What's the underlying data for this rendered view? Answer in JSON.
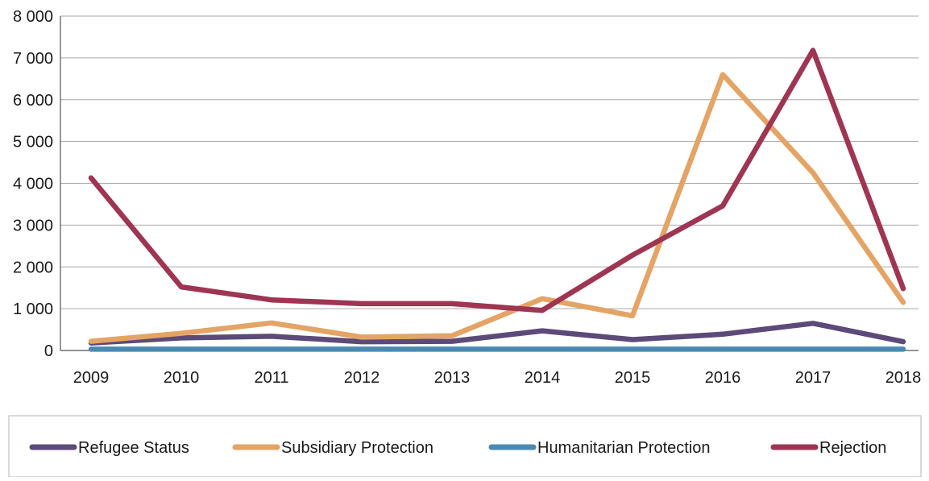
{
  "chart_data": {
    "type": "line",
    "title": "",
    "xlabel": "",
    "ylabel": "",
    "categories": [
      "2009",
      "2010",
      "2011",
      "2012",
      "2013",
      "2014",
      "2015",
      "2016",
      "2017",
      "2018"
    ],
    "ylim": [
      0,
      8000
    ],
    "yticks": [
      0,
      1000,
      2000,
      3000,
      4000,
      5000,
      6000,
      7000,
      8000
    ],
    "ytick_labels": [
      "0",
      "1 000",
      "2 000",
      "3 000",
      "4 000",
      "5 000",
      "6 000",
      "7 000",
      "8 000"
    ],
    "grid": "horizontal",
    "legend_position": "bottom",
    "series": [
      {
        "name": "Refugee Status",
        "color": "#5c4a79",
        "values": [
          180,
          300,
          340,
          210,
          220,
          470,
          260,
          390,
          650,
          210
        ]
      },
      {
        "name": "Subsidiary Protection",
        "color": "#e3a466",
        "values": [
          220,
          410,
          660,
          320,
          350,
          1240,
          830,
          6600,
          4250,
          1150
        ]
      },
      {
        "name": "Humanitarian Protection",
        "color": "#4a8ab2",
        "values": [
          30,
          30,
          30,
          30,
          30,
          30,
          30,
          30,
          30,
          30
        ]
      },
      {
        "name": "Rejection",
        "color": "#9e3552",
        "values": [
          4130,
          1520,
          1210,
          1120,
          1120,
          960,
          2280,
          3460,
          7180,
          1480
        ]
      }
    ]
  }
}
